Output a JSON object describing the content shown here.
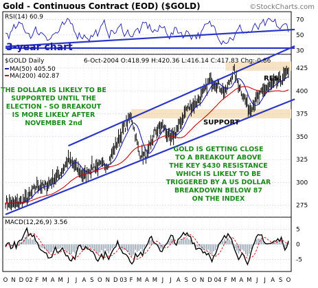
{
  "chart_data": {
    "type": "line",
    "title": "Gold - Continuous Contract (EOD) ($GOLD)",
    "watermark": "©StockCharts.com",
    "period_label": "3-year chart",
    "symbol_label": "$GOLD Daily",
    "ohlc_line": "6-Oct-2004  O:418.99  H:420.36  L:416.14  C:417.83  Chg:-0.86",
    "ma50_label": "MA(50) 405.50",
    "ma200_label": "MA(200) 402.87",
    "rsi_label": "RSI(14) 60.9",
    "macd_label": "MACD(12,26,9) 3.56",
    "annotations": {
      "dollar": [
        "THE DOLLAR IS LIKELY TO BE",
        "SUPPORTED UNTIL THE",
        "ELECTION - SO BREAKOUT",
        "IS MORE LIKELY AFTER",
        "NOVEMBER 2nd"
      ],
      "gold": [
        "GOLD IS GETTING CLOSE",
        "TO A BREAKOUT ABOVE",
        "THE KEY $430 RESISTANCE",
        "WHICH IS LIKELY TO BE",
        "TRIGGERED BY A US DOLLAR",
        "BREAKDOWN BELOW 87",
        "ON THE INDEX"
      ],
      "resistance": "RES.",
      "support": "SUPPORT"
    },
    "y_ticks": [
      275,
      300,
      325,
      350,
      375,
      400,
      425
    ],
    "rsi_ticks": [
      30,
      50,
      70
    ],
    "macd_ticks": [
      -5,
      0,
      5
    ],
    "x_tick_labels": [
      "O",
      "N",
      "D",
      "02",
      "F",
      "M",
      "A",
      "M",
      "J",
      "J",
      "A",
      "S",
      "O",
      "N",
      "D",
      "03",
      "F",
      "M",
      "A",
      "M",
      "J",
      "J",
      "A",
      "S",
      "O",
      "N",
      "D",
      "04",
      "F",
      "M",
      "A",
      "M",
      "J",
      "J",
      "A",
      "S",
      "O"
    ],
    "price_range": [
      262,
      440
    ],
    "rsi_range": [
      25,
      80
    ],
    "macd_range": [
      -9,
      9
    ],
    "resistance_zone": [
      422,
      432
    ],
    "support_zone": [
      370,
      380
    ],
    "price_anchors": [
      [
        0,
        279
      ],
      [
        1,
        276
      ],
      [
        2,
        279
      ],
      [
        3,
        284
      ],
      [
        4,
        297
      ],
      [
        5,
        295
      ],
      [
        6,
        303
      ],
      [
        7,
        310
      ],
      [
        8,
        325
      ],
      [
        9,
        316
      ],
      [
        10,
        307
      ],
      [
        11,
        317
      ],
      [
        12,
        318
      ],
      [
        13,
        320
      ],
      [
        14,
        340
      ],
      [
        15,
        358
      ],
      [
        16,
        373
      ],
      [
        17,
        332
      ],
      [
        18,
        328
      ],
      [
        19,
        355
      ],
      [
        20,
        362
      ],
      [
        21,
        346
      ],
      [
        22,
        360
      ],
      [
        23,
        380
      ],
      [
        24,
        385
      ],
      [
        25,
        395
      ],
      [
        26,
        412
      ],
      [
        27,
        407
      ],
      [
        28,
        398
      ],
      [
        29,
        422
      ],
      [
        30,
        400
      ],
      [
        31,
        380
      ],
      [
        32,
        391
      ],
      [
        33,
        402
      ],
      [
        34,
        407
      ],
      [
        35,
        412
      ],
      [
        36,
        420
      ]
    ],
    "trendlines": {
      "upper_channel": [
        [
          8,
          340
        ],
        [
          36.8,
          449
        ]
      ],
      "lower_channel": [
        [
          0,
          265
        ],
        [
          36.8,
          391
        ]
      ],
      "rsi_upper": [
        [
          0,
          35
        ],
        [
          36.8,
          57
        ]
      ],
      "rsi_lower": [
        [
          0,
          33
        ],
        [
          36.8,
          33
        ]
      ]
    },
    "colors": {
      "frame": "#000000",
      "panel_bg": "#ffffff",
      "price": "#000000",
      "ma50": "#1a1aa8",
      "ma200": "#cc0000",
      "trendline": "#2a35c8",
      "annotation_text": "#1a8a1a",
      "label_text": "#1a1aa8",
      "zone": "#f7e3c2",
      "macd_hist": "#9aa7b7",
      "grid": "#c9d2dd"
    }
  }
}
